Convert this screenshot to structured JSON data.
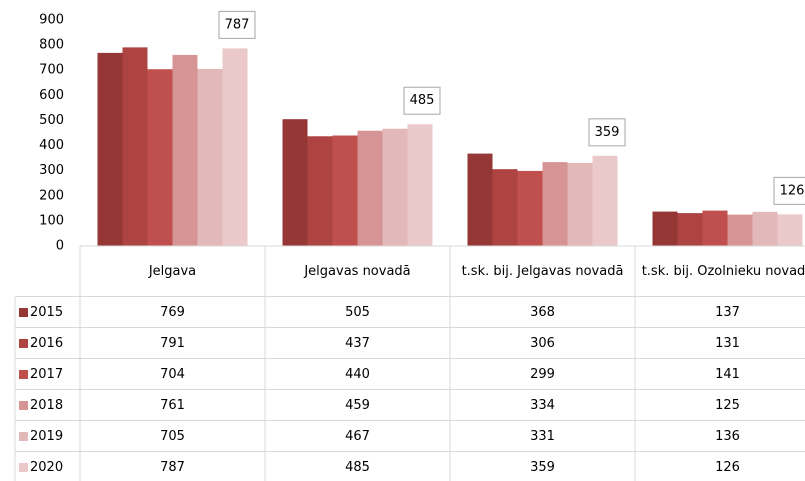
{
  "chart_data": {
    "type": "bar",
    "categories": [
      "Jelgava",
      "Jelgavas novadā",
      "t.sk. bij. Jelgavas novadā",
      "t.sk. bij. Ozolnieku novadā"
    ],
    "series": [
      {
        "name": "2015",
        "color": "#953735",
        "values": [
          769,
          505,
          368,
          137
        ]
      },
      {
        "name": "2016",
        "color": "#ad4442",
        "values": [
          791,
          437,
          306,
          131
        ]
      },
      {
        "name": "2017",
        "color": "#c0504d",
        "values": [
          704,
          440,
          299,
          141
        ]
      },
      {
        "name": "2018",
        "color": "#d69594",
        "values": [
          761,
          459,
          334,
          125
        ]
      },
      {
        "name": "2019",
        "color": "#e3b8b8",
        "values": [
          705,
          467,
          331,
          136
        ]
      },
      {
        "name": "2020",
        "color": "#ebc9ca",
        "values": [
          787,
          485,
          359,
          126
        ],
        "data_labels": true
      }
    ],
    "ylim": [
      0,
      900
    ],
    "yticks": [
      0,
      100,
      200,
      300,
      400,
      500,
      600,
      700,
      800,
      900
    ],
    "grid": false
  }
}
